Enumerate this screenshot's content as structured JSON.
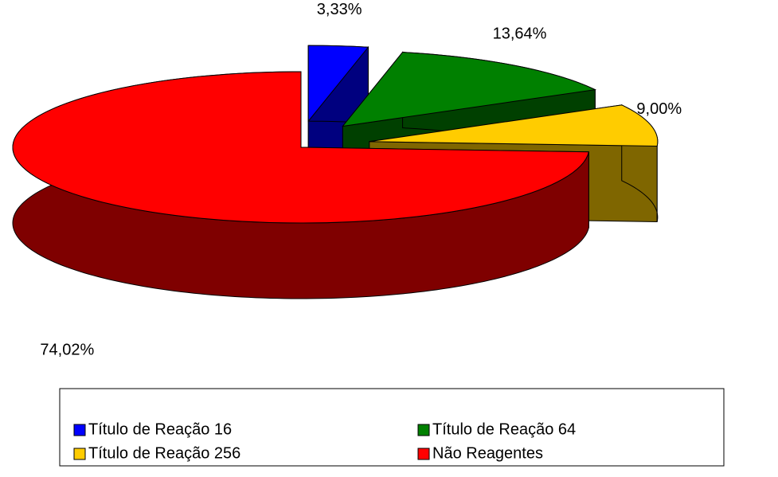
{
  "chart_data": {
    "type": "pie3d",
    "categories": [
      "Título de Reação 16",
      "Título de Reação 64",
      "Título de Reação 256",
      "Não Reagentes"
    ],
    "values": [
      3.33,
      13.64,
      9.0,
      74.02
    ],
    "value_labels": [
      "3,33%",
      "13,64%",
      "9,00%",
      "74,02%"
    ],
    "colors": [
      "#0000ff",
      "#008000",
      "#ffcc00",
      "#ff0000"
    ],
    "legend": "bottom"
  }
}
